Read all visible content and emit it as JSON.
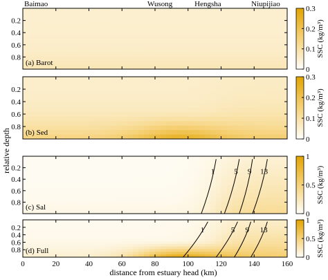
{
  "chart_data": {
    "type": "heatmap",
    "xlabel": "distance from estuary head (km)",
    "ylabel": "relative depth",
    "xlim": [
      0,
      160
    ],
    "ylim": [
      0,
      1
    ],
    "xticks": [
      0,
      20,
      40,
      60,
      80,
      100,
      120,
      140,
      160
    ],
    "yticks": [
      0.2,
      0.4,
      0.6,
      0.8
    ],
    "stations": [
      {
        "name": "Baimao",
        "x": 8
      },
      {
        "name": "Wusong",
        "x": 83
      },
      {
        "name": "Hengsha",
        "x": 112
      },
      {
        "name": "Niupijiao",
        "x": 147
      }
    ],
    "colorbar_label": "SSC (kg/m³)",
    "panels": [
      {
        "id": "barot",
        "label": "(a) Barot",
        "clim": [
          0,
          0.3
        ],
        "cticks": [
          0,
          0.1,
          0.2,
          0.3
        ],
        "field": {
          "base": 0.05,
          "bottom": 0.03,
          "blob": 0.0,
          "mouth": 0.0
        }
      },
      {
        "id": "sed",
        "label": "(b) Sed",
        "clim": [
          0,
          0.3
        ],
        "cticks": [
          0,
          0.1,
          0.2,
          0.3
        ],
        "field": {
          "base": 0.055,
          "bottom": 0.09,
          "blob": 0.12,
          "mouth": 0.02
        }
      },
      {
        "id": "sal",
        "label": "(c) Sal",
        "clim": [
          0,
          1
        ],
        "cticks": [
          0,
          0.5,
          1
        ],
        "field": {
          "base": 0.03,
          "bottom": 0.05,
          "blob": 0.0,
          "mouth": 0.32
        },
        "contours": [
          {
            "label": "1",
            "x_top": 117,
            "x_bottom": 108
          },
          {
            "label": "5",
            "x_top": 131,
            "x_bottom": 122
          },
          {
            "label": "9",
            "x_top": 139,
            "x_bottom": 131
          },
          {
            "label": "13",
            "x_top": 148,
            "x_bottom": 139
          }
        ]
      },
      {
        "id": "full",
        "label": "(d) Full",
        "clim": [
          0,
          1
        ],
        "cticks": [
          0,
          0.5,
          1
        ],
        "field": {
          "base": 0.05,
          "bottom": 0.12,
          "blob": 0.78,
          "mouth": 0.38
        },
        "contours": [
          {
            "label": "1",
            "x_top": 112,
            "x_bottom": 97
          },
          {
            "label": "5",
            "x_top": 130,
            "x_bottom": 117
          },
          {
            "label": "9",
            "x_top": 138,
            "x_bottom": 128
          },
          {
            "label": "13",
            "x_top": 148,
            "x_bottom": 138
          }
        ]
      }
    ]
  },
  "colors": {
    "low": "#fffefa",
    "mid": "#f6d27a",
    "high": "#e2a400"
  }
}
